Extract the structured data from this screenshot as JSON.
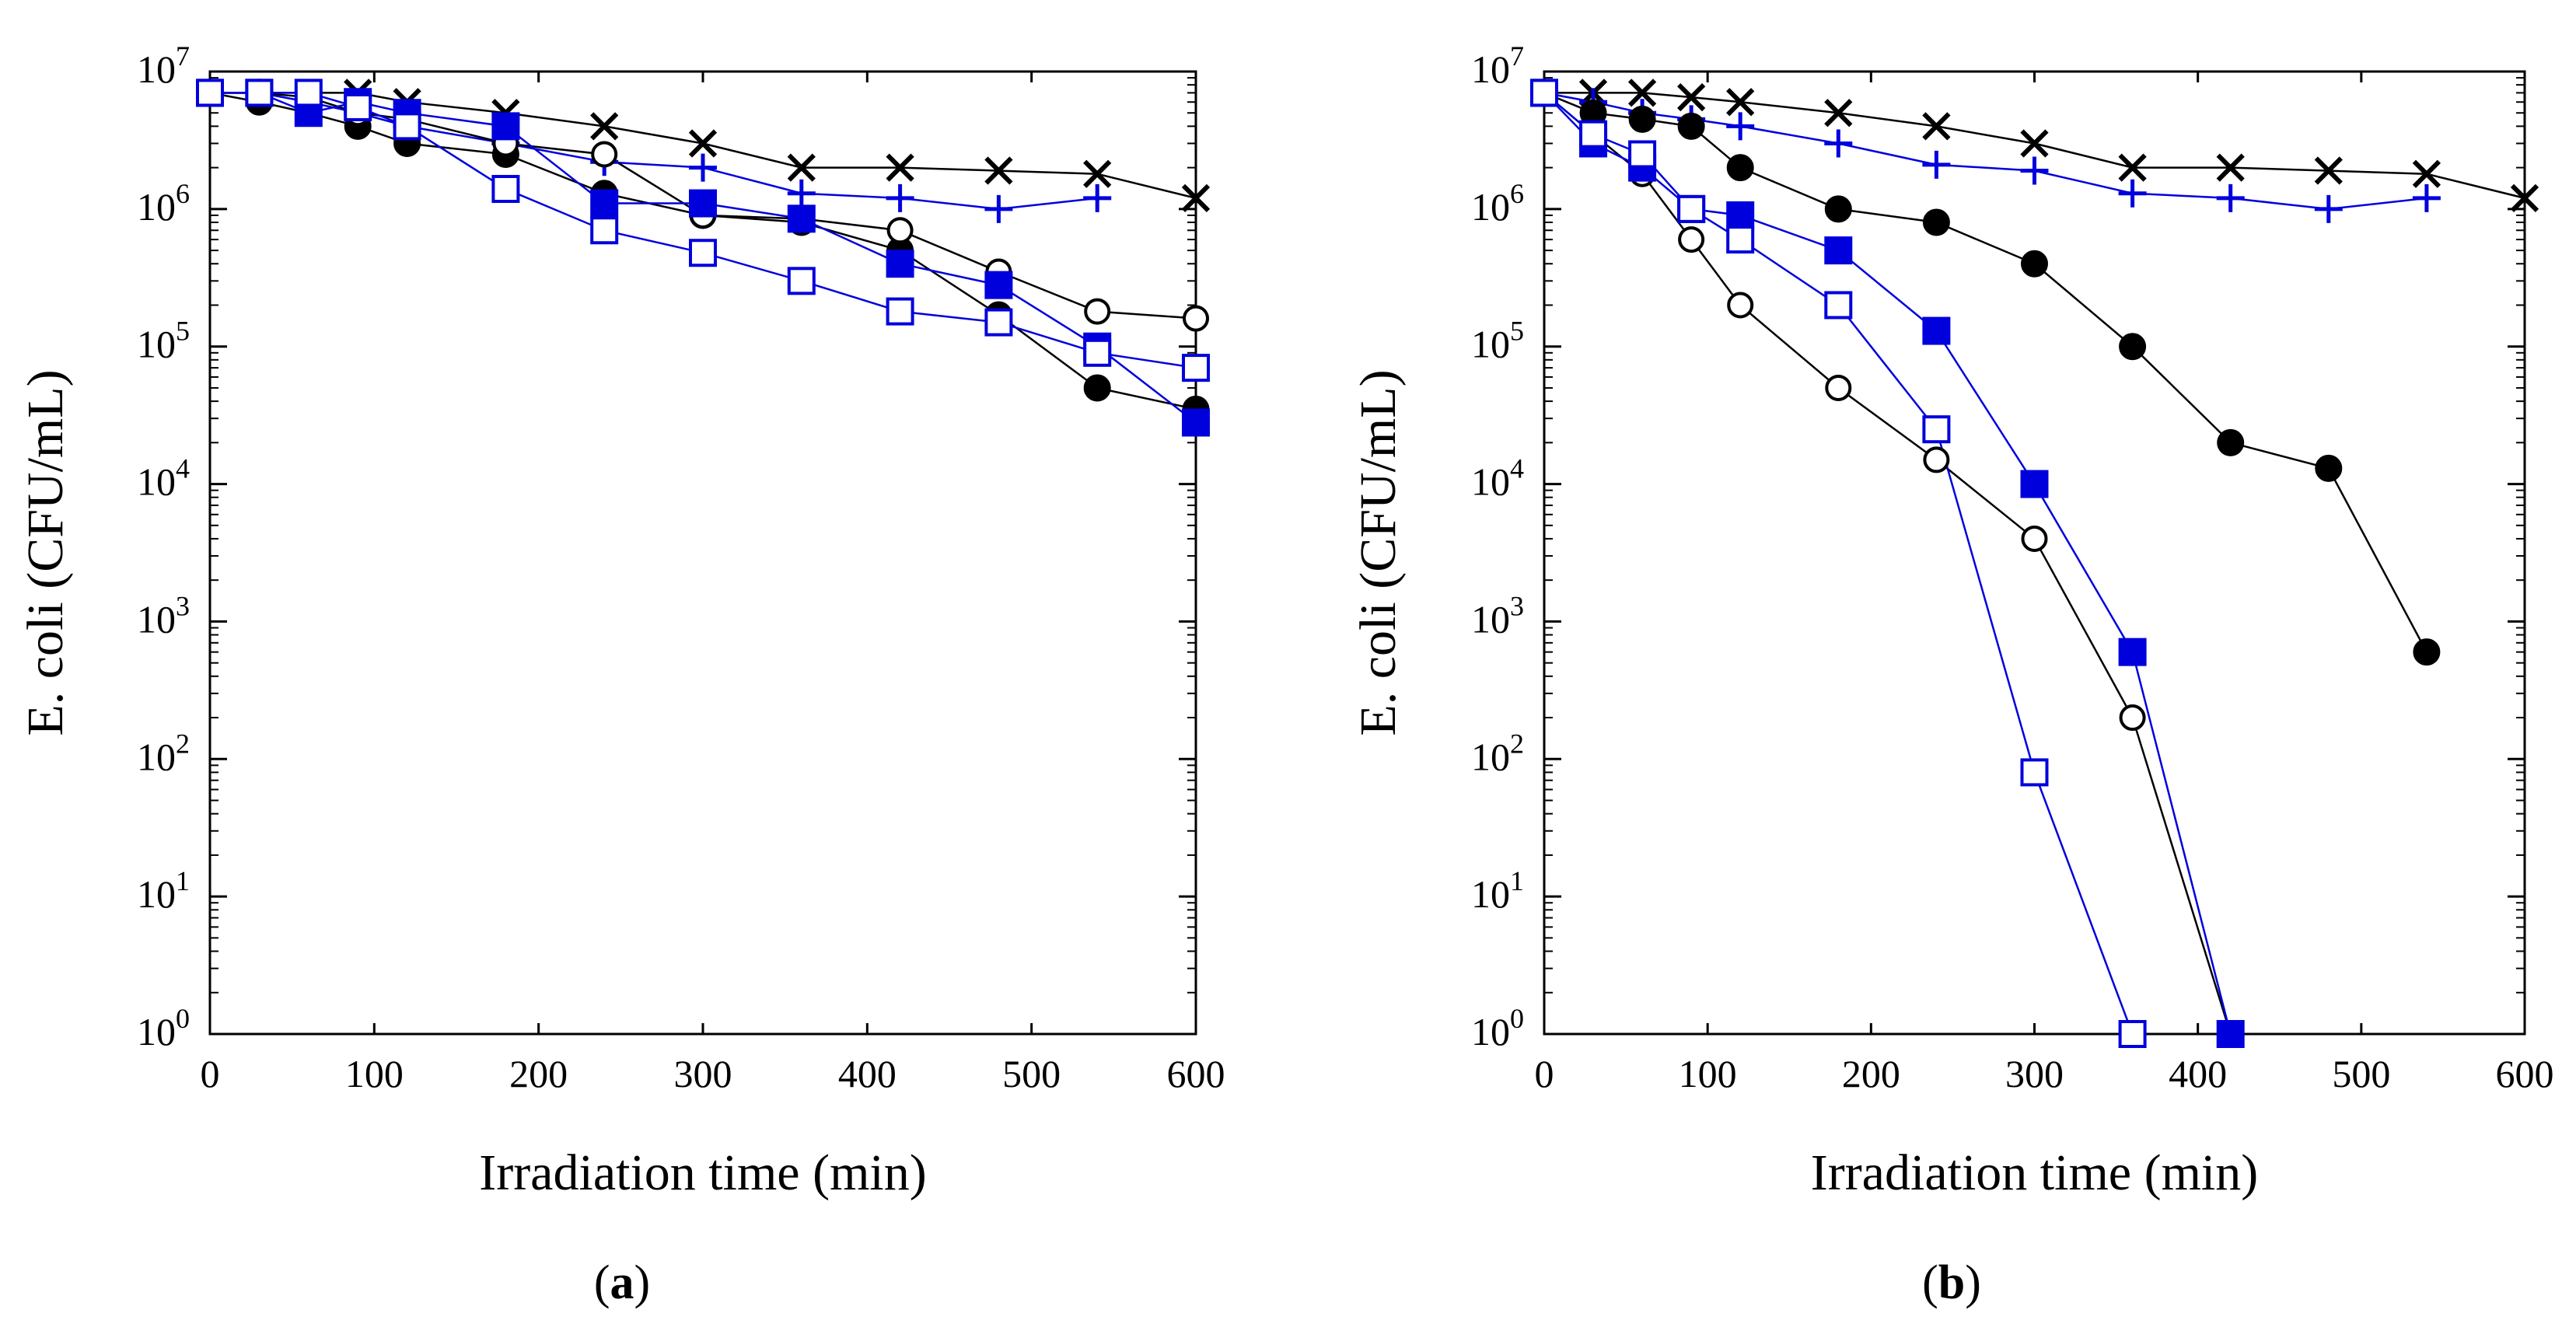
{
  "figure": {
    "panel_labels": [
      {
        "open": "(",
        "letter": "a",
        "close": ")"
      },
      {
        "open": "(",
        "letter": "b",
        "close": ")"
      }
    ]
  },
  "colors": {
    "black": "#000000",
    "blue": "#0000dd"
  },
  "chart_data": [
    {
      "type": "line",
      "panel": "a",
      "xlabel": "Irradiation time (min)",
      "ylabel": "E. coli (CFU/mL)",
      "xlim": [
        0,
        600
      ],
      "ylim": [
        1,
        10000000
      ],
      "yscale": "log",
      "xticks": [
        0,
        100,
        200,
        300,
        400,
        500,
        600
      ],
      "yticks": [
        {
          "base": "10",
          "exp": "0"
        },
        {
          "base": "10",
          "exp": "1"
        },
        {
          "base": "10",
          "exp": "2"
        },
        {
          "base": "10",
          "exp": "3"
        },
        {
          "base": "10",
          "exp": "4"
        },
        {
          "base": "10",
          "exp": "5"
        },
        {
          "base": "10",
          "exp": "6"
        },
        {
          "base": "10",
          "exp": "7"
        }
      ],
      "series": [
        {
          "name": "cross",
          "marker": "x",
          "color": "#000000",
          "x": [
            0,
            30,
            60,
            90,
            120,
            180,
            240,
            300,
            360,
            420,
            480,
            540,
            600
          ],
          "y": [
            7000000,
            7000000,
            7000000,
            7000000,
            6000000,
            5000000,
            4000000,
            3000000,
            2000000,
            2000000,
            1900000,
            1800000,
            1200000
          ]
        },
        {
          "name": "plus",
          "marker": "plus",
          "color": "#0000dd",
          "x": [
            0,
            30,
            60,
            90,
            120,
            180,
            240,
            300,
            360,
            420,
            480,
            540
          ],
          "y": [
            7000000,
            7000000,
            6000000,
            5000000,
            4000000,
            3000000,
            2200000,
            2000000,
            1300000,
            1200000,
            1000000,
            1200000
          ]
        },
        {
          "name": "filled-circle",
          "marker": "filled-circle",
          "color": "#000000",
          "x": [
            0,
            30,
            60,
            90,
            120,
            180,
            240,
            300,
            360,
            420,
            480,
            540,
            600
          ],
          "y": [
            7000000,
            6000000,
            5000000,
            4000000,
            3000000,
            2500000,
            1300000,
            900000,
            800000,
            500000,
            170000,
            50000,
            35000
          ]
        },
        {
          "name": "open-circle",
          "marker": "open-circle",
          "color": "#000000",
          "x": [
            0,
            30,
            60,
            90,
            120,
            180,
            240,
            300,
            360,
            420,
            480,
            540,
            600
          ],
          "y": [
            7000000,
            7000000,
            6500000,
            5000000,
            4500000,
            3000000,
            2500000,
            900000,
            850000,
            700000,
            350000,
            180000,
            160000
          ]
        },
        {
          "name": "filled-square",
          "marker": "filled-square",
          "color": "#0000dd",
          "x": [
            0,
            30,
            60,
            90,
            120,
            180,
            240,
            300,
            360,
            420,
            480,
            540,
            600
          ],
          "y": [
            7000000,
            7000000,
            5000000,
            6000000,
            5000000,
            4000000,
            1100000,
            1100000,
            850000,
            400000,
            280000,
            100000,
            28000
          ]
        },
        {
          "name": "open-square",
          "marker": "open-square",
          "color": "#0000dd",
          "x": [
            0,
            30,
            60,
            90,
            120,
            180,
            240,
            300,
            360,
            420,
            480,
            540,
            600
          ],
          "y": [
            7000000,
            7000000,
            7000000,
            5500000,
            4000000,
            1400000,
            700000,
            480000,
            300000,
            180000,
            150000,
            90000,
            70000
          ]
        }
      ]
    },
    {
      "type": "line",
      "panel": "b",
      "xlabel": "Irradiation time (min)",
      "ylabel": "E. coli (CFU/mL)",
      "xlim": [
        0,
        600
      ],
      "ylim": [
        1,
        10000000
      ],
      "yscale": "log",
      "xticks": [
        0,
        100,
        200,
        300,
        400,
        500,
        600
      ],
      "yticks": [
        {
          "base": "10",
          "exp": "0"
        },
        {
          "base": "10",
          "exp": "1"
        },
        {
          "base": "10",
          "exp": "2"
        },
        {
          "base": "10",
          "exp": "3"
        },
        {
          "base": "10",
          "exp": "4"
        },
        {
          "base": "10",
          "exp": "5"
        },
        {
          "base": "10",
          "exp": "6"
        },
        {
          "base": "10",
          "exp": "7"
        }
      ],
      "series": [
        {
          "name": "cross",
          "marker": "x",
          "color": "#000000",
          "x": [
            0,
            30,
            60,
            90,
            120,
            180,
            240,
            300,
            360,
            420,
            480,
            540,
            600
          ],
          "y": [
            7000000,
            7000000,
            7000000,
            6500000,
            6000000,
            5000000,
            4000000,
            3000000,
            2000000,
            2000000,
            1900000,
            1800000,
            1200000
          ]
        },
        {
          "name": "plus",
          "marker": "plus",
          "color": "#0000dd",
          "x": [
            0,
            30,
            60,
            90,
            120,
            180,
            240,
            300,
            360,
            420,
            480,
            540
          ],
          "y": [
            7000000,
            6000000,
            5000000,
            4500000,
            4000000,
            3000000,
            2100000,
            1900000,
            1300000,
            1200000,
            1000000,
            1200000
          ]
        },
        {
          "name": "filled-circle",
          "marker": "filled-circle",
          "color": "#000000",
          "x": [
            0,
            30,
            60,
            90,
            120,
            180,
            240,
            300,
            360,
            420,
            480,
            540
          ],
          "y": [
            7000000,
            5000000,
            4500000,
            4000000,
            2000000,
            1000000,
            800000,
            400000,
            100000,
            20000,
            13000,
            600
          ]
        },
        {
          "name": "open-circle",
          "marker": "open-circle",
          "color": "#000000",
          "x": [
            0,
            30,
            60,
            90,
            120,
            180,
            240,
            300,
            360,
            420
          ],
          "y": [
            7000000,
            3500000,
            1800000,
            600000,
            200000,
            50000,
            15000,
            4000,
            200,
            1
          ]
        },
        {
          "name": "filled-square",
          "marker": "filled-square",
          "color": "#0000dd",
          "x": [
            0,
            30,
            60,
            90,
            120,
            180,
            240,
            300,
            360,
            420
          ],
          "y": [
            7000000,
            3000000,
            2000000,
            1000000,
            900000,
            500000,
            130000,
            10000,
            600,
            1
          ]
        },
        {
          "name": "open-square",
          "marker": "open-square",
          "color": "#0000dd",
          "x": [
            0,
            30,
            60,
            90,
            120,
            180,
            240,
            300,
            360
          ],
          "y": [
            7000000,
            3500000,
            2500000,
            1000000,
            600000,
            200000,
            25000,
            80,
            1
          ]
        }
      ]
    }
  ]
}
